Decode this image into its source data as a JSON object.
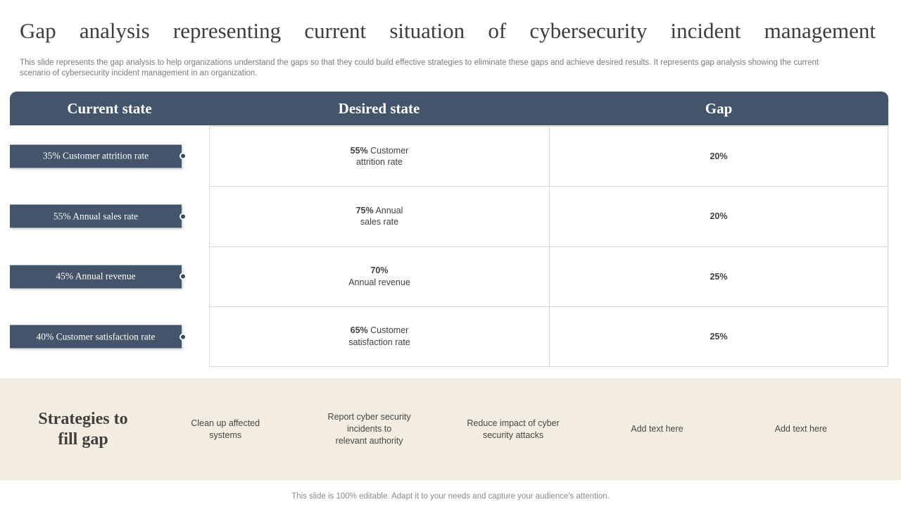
{
  "slide": {
    "title": "Gap analysis representing current situation of cybersecurity incident management",
    "subtitle": "This slide represents the gap analysis to help organizations understand the gaps so that they could build effective strategies to eliminate these gaps and achieve desired results. It represents gap analysis showing the current\nscenario of cybersecurity incident management in an organization.",
    "footer": "This slide is 100% editable. Adapt it to your needs and capture your audience's attention."
  },
  "table": {
    "headers": [
      "Current state",
      "Desired state",
      "Gap"
    ],
    "rows": [
      {
        "current": "35% Customer attrition rate",
        "desired_pct": "55%",
        "desired_label": "Customer\nattrition rate",
        "gap": "20%"
      },
      {
        "current": "55% Annual sales rate",
        "desired_pct": "75%",
        "desired_label": "Annual\nsales rate",
        "gap": "20%"
      },
      {
        "current": "45% Annual revenue",
        "desired_pct": "70%",
        "desired_label": "\nAnnual revenue",
        "gap": "25%"
      },
      {
        "current": "40% Customer satisfaction rate",
        "desired_pct": "65%",
        "desired_label": "Customer\nsatisfaction rate",
        "gap": "25%"
      }
    ]
  },
  "strategies": {
    "heading": "Strategies to\nfill gap",
    "items": [
      "Clean up affected\nsystems",
      "Report cyber security\nincidents to\nrelevant authority",
      "Reduce impact of cyber\nsecurity attacks",
      "Add text here",
      "Add text here"
    ]
  },
  "colors": {
    "accent": "#44546A",
    "dot": "#3A4757",
    "beige": "#F2EDE0",
    "border": "#D8D8D8"
  }
}
